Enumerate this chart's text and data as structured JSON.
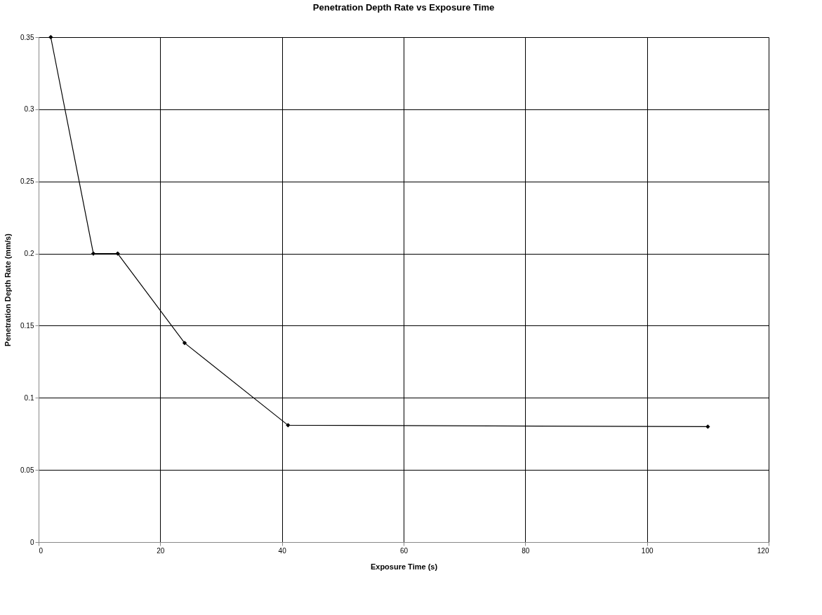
{
  "chart_data": {
    "type": "line",
    "title": "Penetration Depth Rate vs Exposure Time",
    "xlabel": "Exposure Time (s)",
    "ylabel": "Penetration Depth Rate (mm/s)",
    "x": [
      2,
      9,
      13,
      24,
      41,
      110
    ],
    "series": [
      {
        "color": "#000000",
        "values": [
          0.35,
          0.2,
          0.2,
          0.138,
          0.081,
          0.08
        ]
      }
    ],
    "xlim": [
      0,
      120
    ],
    "xticks": [
      0,
      20,
      40,
      60,
      80,
      100,
      120
    ],
    "ylim": [
      0,
      0.35
    ],
    "yticks": [
      0,
      0.05,
      0.1,
      0.15,
      0.2,
      0.25,
      0.3,
      0.35
    ],
    "grid": true,
    "marker": "diamond",
    "line_style": "solid"
  }
}
